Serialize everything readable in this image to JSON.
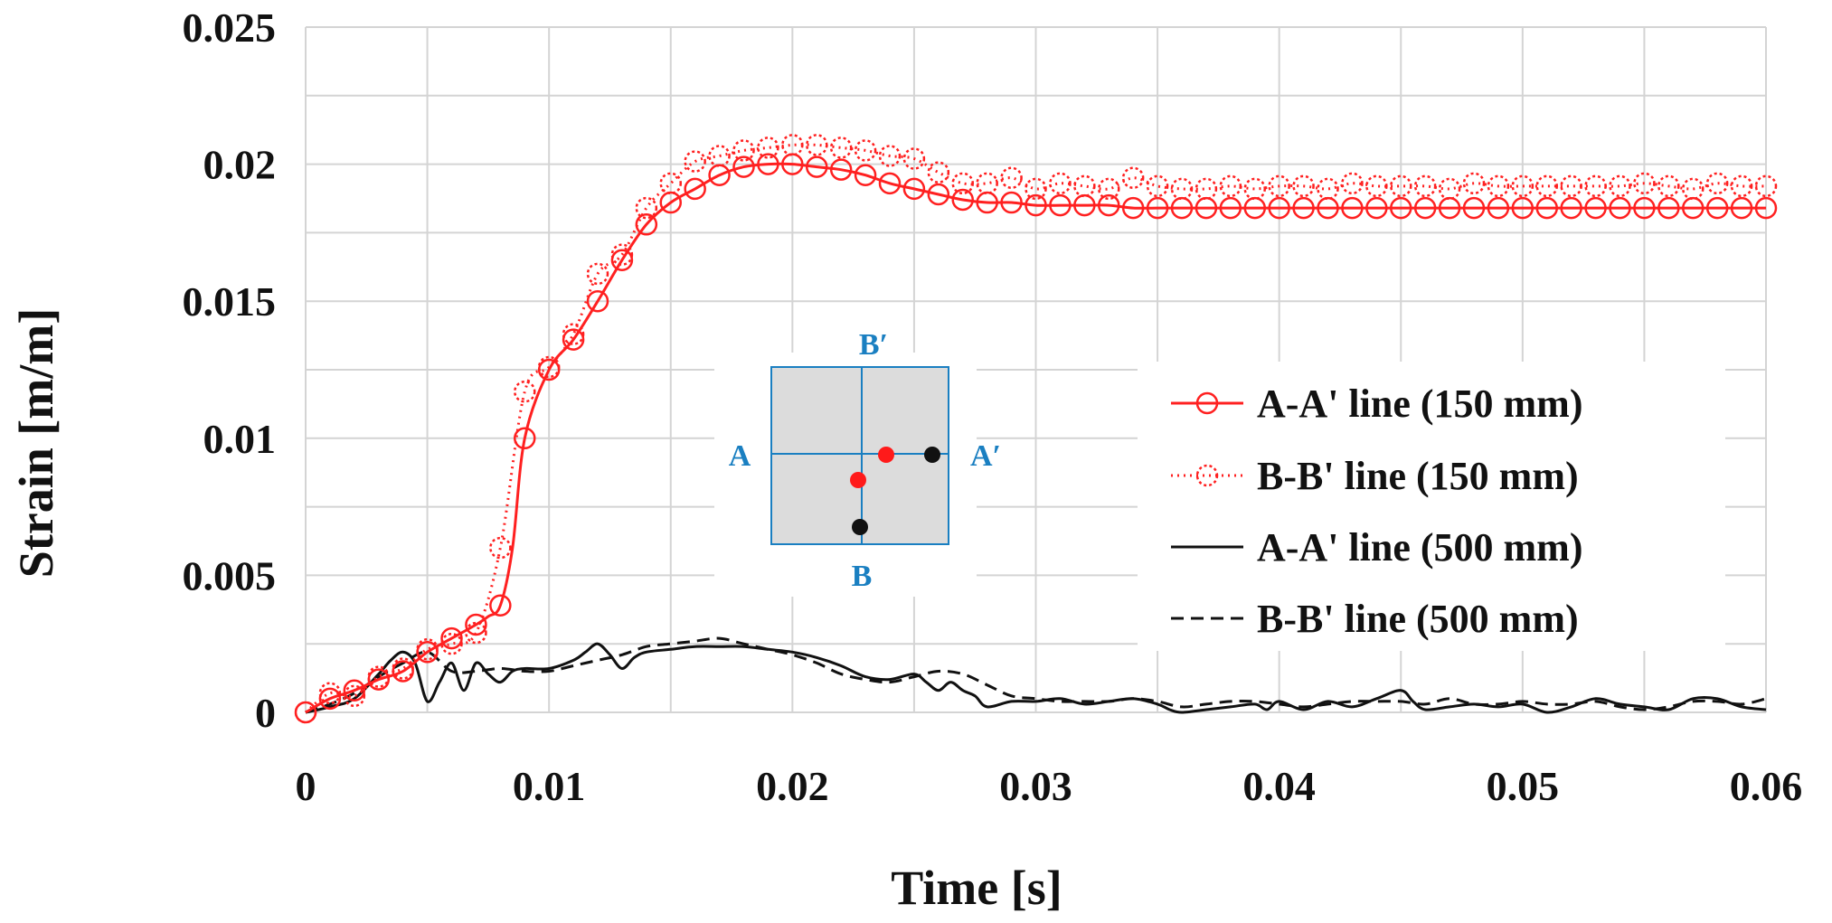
{
  "chart_data": {
    "type": "line",
    "title": "",
    "xlabel": "Time [s]",
    "ylabel": "Strain [m/m]",
    "xlim": [
      0,
      0.06
    ],
    "ylim": [
      0,
      0.025
    ],
    "x_ticks": [
      "0",
      "0.01",
      "0.02",
      "0.03",
      "0.04",
      "0.05",
      "0.06"
    ],
    "y_ticks": [
      "0",
      "0.005",
      "0.01",
      "0.015",
      "0.02",
      "0.025"
    ],
    "grid": true,
    "legend_position": "right",
    "colors": {
      "red": "#ff2020",
      "black": "#111111",
      "inset_blue": "#1a7fc1",
      "inset_fill": "#dcdcdc"
    },
    "series": [
      {
        "name": "A-A' line (150 mm)",
        "style": "solid-circle",
        "color": "#ff2020",
        "x": [
          0,
          0.001,
          0.002,
          0.003,
          0.004,
          0.005,
          0.006,
          0.007,
          0.0075,
          0.008,
          0.0085,
          0.009,
          0.01,
          0.011,
          0.012,
          0.013,
          0.014,
          0.015,
          0.016,
          0.017,
          0.018,
          0.019,
          0.02,
          0.021,
          0.022,
          0.023,
          0.024,
          0.025,
          0.026,
          0.027,
          0.028,
          0.029,
          0.03,
          0.031,
          0.032,
          0.033,
          0.034,
          0.035,
          0.036,
          0.037,
          0.038,
          0.039,
          0.04,
          0.041,
          0.042,
          0.043,
          0.044,
          0.045,
          0.046,
          0.047,
          0.048,
          0.049,
          0.05,
          0.051,
          0.052,
          0.053,
          0.054,
          0.055,
          0.056,
          0.057,
          0.058,
          0.059,
          0.06
        ],
        "values": [
          0,
          0.0005,
          0.0008,
          0.0012,
          0.0015,
          0.0022,
          0.0027,
          0.0032,
          0.0035,
          0.0039,
          0.006,
          0.01,
          0.0125,
          0.0136,
          0.015,
          0.0165,
          0.0178,
          0.0186,
          0.0191,
          0.0196,
          0.0199,
          0.02,
          0.02,
          0.0199,
          0.0198,
          0.0196,
          0.0193,
          0.0191,
          0.0189,
          0.0187,
          0.0186,
          0.0186,
          0.0185,
          0.0185,
          0.0185,
          0.0185,
          0.0184,
          0.0184,
          0.0184,
          0.0184,
          0.0184,
          0.0184,
          0.0184,
          0.0184,
          0.0184,
          0.0184,
          0.0184,
          0.0184,
          0.0184,
          0.0184,
          0.0184,
          0.0184,
          0.0184,
          0.0184,
          0.0184,
          0.0184,
          0.0184,
          0.0184,
          0.0184,
          0.0184,
          0.0184,
          0.0184,
          0.0184
        ]
      },
      {
        "name": "B-B' line (150 mm)",
        "style": "dotted-circle",
        "color": "#ff2020",
        "x": [
          0,
          0.001,
          0.002,
          0.003,
          0.004,
          0.005,
          0.006,
          0.007,
          0.008,
          0.009,
          0.01,
          0.011,
          0.012,
          0.013,
          0.014,
          0.015,
          0.016,
          0.017,
          0.018,
          0.019,
          0.02,
          0.021,
          0.022,
          0.023,
          0.024,
          0.025,
          0.026,
          0.027,
          0.028,
          0.029,
          0.03,
          0.031,
          0.032,
          0.033,
          0.034,
          0.035,
          0.036,
          0.037,
          0.038,
          0.039,
          0.04,
          0.041,
          0.042,
          0.043,
          0.044,
          0.045,
          0.046,
          0.047,
          0.048,
          0.049,
          0.05,
          0.051,
          0.052,
          0.053,
          0.054,
          0.055,
          0.056,
          0.057,
          0.058,
          0.059,
          0.06
        ],
        "values": [
          0,
          0.0007,
          0.0006,
          0.0013,
          0.0016,
          0.0023,
          0.0025,
          0.0029,
          0.006,
          0.0117,
          0.0126,
          0.0138,
          0.016,
          0.0167,
          0.0184,
          0.0193,
          0.0201,
          0.0203,
          0.0205,
          0.0206,
          0.0207,
          0.0207,
          0.0206,
          0.0205,
          0.0203,
          0.0202,
          0.0197,
          0.0193,
          0.0193,
          0.0195,
          0.0191,
          0.0193,
          0.0192,
          0.0191,
          0.0195,
          0.0192,
          0.0191,
          0.0191,
          0.0192,
          0.0191,
          0.0192,
          0.0192,
          0.0191,
          0.0193,
          0.0192,
          0.0192,
          0.0192,
          0.0191,
          0.0193,
          0.0192,
          0.0192,
          0.0192,
          0.0192,
          0.0192,
          0.0192,
          0.0193,
          0.0192,
          0.0191,
          0.0193,
          0.0192,
          0.0192
        ]
      },
      {
        "name": "A-A' line (500 mm)",
        "style": "solid",
        "color": "#111111",
        "x": [
          0,
          0.001,
          0.002,
          0.003,
          0.0035,
          0.004,
          0.0045,
          0.005,
          0.0055,
          0.006,
          0.0065,
          0.007,
          0.0075,
          0.008,
          0.0085,
          0.009,
          0.01,
          0.011,
          0.0115,
          0.012,
          0.0125,
          0.013,
          0.0135,
          0.014,
          0.015,
          0.016,
          0.017,
          0.018,
          0.019,
          0.02,
          0.021,
          0.022,
          0.023,
          0.024,
          0.025,
          0.0255,
          0.026,
          0.0265,
          0.027,
          0.0275,
          0.028,
          0.029,
          0.03,
          0.031,
          0.032,
          0.033,
          0.034,
          0.035,
          0.0355,
          0.036,
          0.037,
          0.038,
          0.039,
          0.0395,
          0.04,
          0.041,
          0.042,
          0.043,
          0.044,
          0.045,
          0.0455,
          0.046,
          0.047,
          0.048,
          0.049,
          0.05,
          0.051,
          0.052,
          0.053,
          0.054,
          0.055,
          0.056,
          0.057,
          0.058,
          0.059,
          0.06
        ],
        "values": [
          0,
          0.0002,
          0.0005,
          0.0014,
          0.0019,
          0.0022,
          0.0018,
          0.0004,
          0.0011,
          0.0018,
          0.0008,
          0.0018,
          0.0014,
          0.0011,
          0.0015,
          0.0016,
          0.0016,
          0.0019,
          0.0022,
          0.0025,
          0.0021,
          0.0016,
          0.002,
          0.0022,
          0.0023,
          0.0024,
          0.0024,
          0.0024,
          0.0023,
          0.0022,
          0.002,
          0.0017,
          0.0013,
          0.0012,
          0.0014,
          0.0011,
          0.0008,
          0.0011,
          0.0008,
          0.0006,
          0.0002,
          0.0004,
          0.0004,
          0.0005,
          0.0003,
          0.0004,
          0.0005,
          0.0003,
          0.0001,
          0,
          0.0001,
          0.0002,
          0.0003,
          0.0001,
          0.0004,
          0.0001,
          0.0004,
          0.0002,
          0.0005,
          0.0008,
          0.0004,
          0.0001,
          0.0002,
          0.0003,
          0.0002,
          0.0003,
          0,
          0.0002,
          0.0005,
          0.0003,
          0.0002,
          0.0001,
          0.0005,
          0.0005,
          0.0002,
          0.0001
        ]
      },
      {
        "name": "B-B' line (500 mm)",
        "style": "dashed",
        "color": "#111111",
        "x": [
          0,
          0.001,
          0.002,
          0.003,
          0.004,
          0.005,
          0.006,
          0.007,
          0.008,
          0.009,
          0.01,
          0.011,
          0.012,
          0.013,
          0.014,
          0.015,
          0.016,
          0.017,
          0.018,
          0.019,
          0.02,
          0.021,
          0.022,
          0.023,
          0.024,
          0.025,
          0.026,
          0.027,
          0.028,
          0.029,
          0.03,
          0.031,
          0.032,
          0.033,
          0.034,
          0.035,
          0.036,
          0.037,
          0.038,
          0.039,
          0.04,
          0.041,
          0.042,
          0.043,
          0.044,
          0.045,
          0.046,
          0.047,
          0.048,
          0.049,
          0.05,
          0.051,
          0.052,
          0.053,
          0.054,
          0.055,
          0.056,
          0.057,
          0.058,
          0.059,
          0.06
        ],
        "values": [
          0,
          0.0003,
          0.0007,
          0.0013,
          0.0018,
          0.0022,
          0.0015,
          0.0015,
          0.0016,
          0.0015,
          0.0015,
          0.0017,
          0.0019,
          0.0021,
          0.0024,
          0.0025,
          0.0026,
          0.0027,
          0.0025,
          0.0023,
          0.0021,
          0.0018,
          0.0014,
          0.0012,
          0.0011,
          0.0013,
          0.0015,
          0.0014,
          0.001,
          0.0006,
          0.0005,
          0.0004,
          0.0004,
          0.0004,
          0.0005,
          0.0004,
          0.0002,
          0.0003,
          0.0004,
          0.0004,
          0.0003,
          0.0002,
          0.0003,
          0.0004,
          0.0004,
          0.0004,
          0.0003,
          0.0005,
          0.0003,
          0.0003,
          0.0004,
          0.0003,
          0.0003,
          0.0004,
          0.0002,
          0.0001,
          0.0002,
          0.0004,
          0.0004,
          0.0003,
          0.0005
        ]
      }
    ],
    "inset": {
      "labels": {
        "top": "B′",
        "left": "A",
        "right": "A′",
        "bottom": "B"
      },
      "points": [
        {
          "name": "A-A' 150 mm point",
          "color": "red"
        },
        {
          "name": "B-B' 150 mm point",
          "color": "red"
        },
        {
          "name": "A-A' 500 mm point",
          "color": "black"
        },
        {
          "name": "B-B' 500 mm point",
          "color": "black"
        }
      ]
    }
  }
}
